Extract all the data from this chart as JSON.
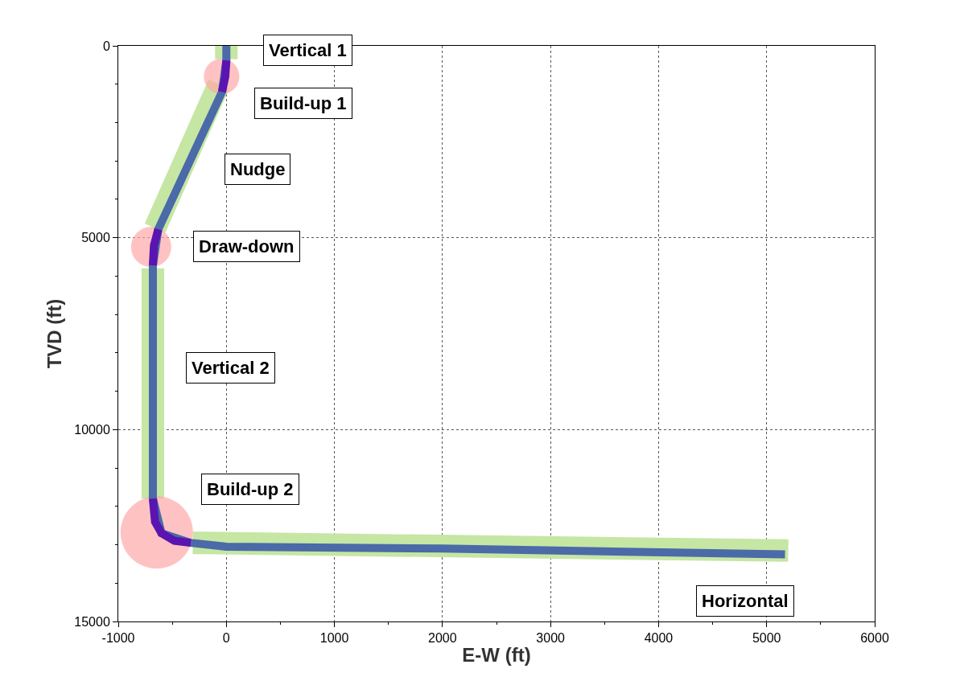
{
  "chart_data": {
    "type": "line",
    "xlabel": "E-W (ft)",
    "ylabel": "TVD (ft)",
    "xlim": [
      -1000,
      6000
    ],
    "xticks": [
      -1000,
      0,
      1000,
      2000,
      3000,
      4000,
      5000,
      6000
    ],
    "ylim": [
      15000,
      0
    ],
    "yticks": [
      0,
      5000,
      10000,
      15000
    ],
    "grid": true,
    "series": [
      {
        "color": "#c6e6a4",
        "x": [
          0,
          0
        ],
        "values": [
          0,
          350
        ]
      },
      {
        "color": "#c6e6a4",
        "x": [
          -70,
          -660
        ],
        "values": [
          1000,
          4750
        ]
      },
      {
        "color": "#c6e6a4",
        "x": [
          -680,
          -680
        ],
        "values": [
          5800,
          11800
        ]
      },
      {
        "color": "#c6e6a4",
        "x": [
          -310,
          5200
        ],
        "values": [
          12950,
          13150
        ]
      },
      {
        "type": "bubble",
        "color": "#ffa8a8",
        "x": [
          -44,
          -696,
          -644
        ],
        "values": [
          800,
          5240,
          12680
        ],
        "sizes": [
          0.24,
          0.31,
          1
        ]
      },
      {
        "color": "#4a6aa8",
        "x": [
          0,
          0,
          -40,
          -630,
          -680,
          -680,
          -600,
          -330,
          0,
          2000,
          5170
        ],
        "values": [
          0,
          380,
          1200,
          4780,
          5720,
          11800,
          12700,
          12950,
          13050,
          13100,
          13250
        ]
      },
      {
        "color": "#5a14b0",
        "x": [
          0,
          -10,
          -40
        ],
        "values": [
          380,
          800,
          1200
        ]
      },
      {
        "color": "#5a14b0",
        "x": [
          -630,
          -670,
          -680
        ],
        "values": [
          4780,
          5200,
          5720
        ]
      },
      {
        "color": "#5a14b0",
        "x": [
          -680,
          -660,
          -600,
          -480,
          -330
        ],
        "values": [
          11800,
          12400,
          12700,
          12900,
          12950
        ]
      }
    ],
    "annotations": [
      "Vertical 1",
      "Build-up 1",
      "Nudge",
      "Draw-down",
      "Vertical 2",
      "Build-up 2",
      "Horizontal"
    ]
  }
}
